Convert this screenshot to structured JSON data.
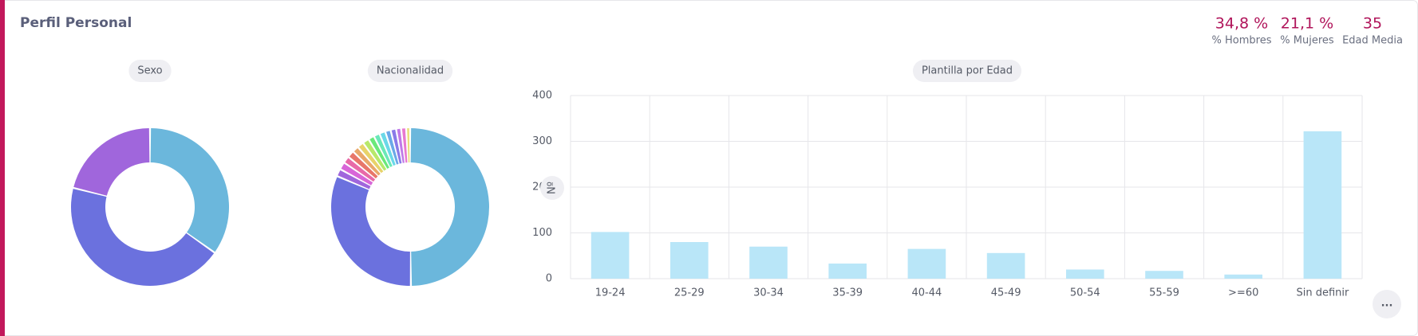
{
  "header": {
    "title": "Perfil Personal",
    "stats": [
      {
        "value": "34,8 %",
        "label": "% Hombres"
      },
      {
        "value": "21,1 %",
        "label": "% Mujeres"
      },
      {
        "value": "35",
        "label": "Edad Media"
      }
    ]
  },
  "more_button": "...",
  "chart_data": [
    {
      "type": "pie",
      "title": "Sexo",
      "values": [
        34.8,
        44.1,
        21.1
      ],
      "colors": [
        "#6bb7dc",
        "#6b71de",
        "#a066dc"
      ]
    },
    {
      "type": "pie",
      "title": "Nacionalidad",
      "values": [
        49,
        31,
        1.5,
        1.5,
        1.4,
        1.4,
        1.3,
        1.3,
        1.3,
        1.2,
        1.2,
        1.2,
        1.1,
        1.1,
        1.0,
        1.0,
        0.8
      ],
      "colors": [
        "#6bb7dc",
        "#6b71de",
        "#a066dc",
        "#d866d8",
        "#e86aa8",
        "#e8776a",
        "#e8a86a",
        "#e8d36a",
        "#b8e86a",
        "#6ae87a",
        "#6ae8b8",
        "#6ad8e8",
        "#6aa8e8",
        "#8a7ae8",
        "#c07ae8",
        "#e87ad0",
        "#e8e07a"
      ]
    },
    {
      "type": "bar",
      "title": "Plantilla por Edad",
      "ylabel": "Nº",
      "categories": [
        "19-24",
        "25-29",
        "30-34",
        "35-39",
        "40-44",
        "45-49",
        "50-54",
        "55-59",
        ">=60",
        "Sin definir"
      ],
      "values": [
        102,
        80,
        70,
        33,
        65,
        56,
        20,
        17,
        9,
        322
      ],
      "color": "#b9e6f8",
      "ylim": [
        0,
        400
      ],
      "yticks": [
        0,
        100,
        200,
        300,
        400
      ],
      "grid": true
    }
  ]
}
